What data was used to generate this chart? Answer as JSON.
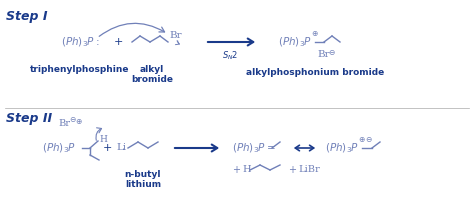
{
  "bg_color": "#ffffff",
  "dark": "#1a3a8a",
  "chem": "#7080b8",
  "step1_label": "Step I",
  "step2_label": "Step II",
  "label_triphenyl": "triphenylphosphine",
  "label_alkyl": "alkyl\nbromide",
  "label_alkylphos": "alkylphosphonium bromide",
  "label_nbutyl": "n-butyl\nlithium",
  "figsize": [
    4.74,
    2.15
  ],
  "dpi": 100
}
